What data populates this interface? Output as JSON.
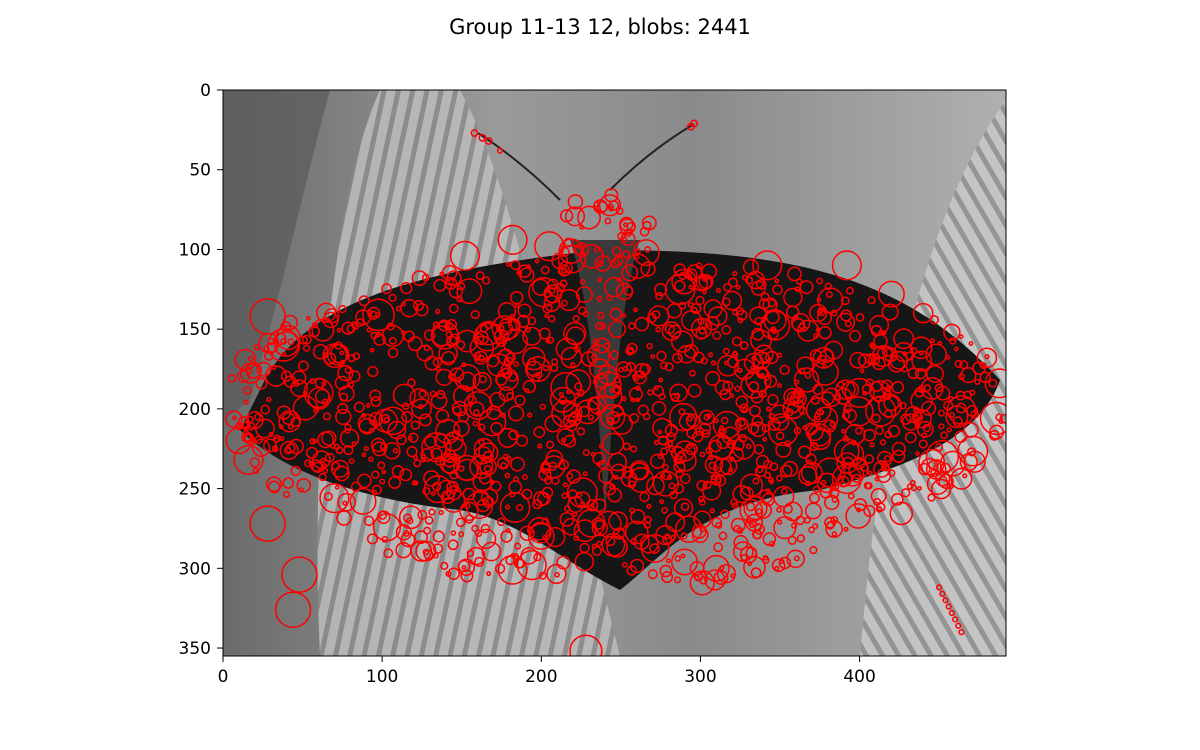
{
  "chart_data": {
    "type": "scatter",
    "title": "Group 11-13 12, blobs: 2441",
    "xlabel": "",
    "ylabel": "",
    "xlim": [
      0,
      492
    ],
    "ylim": [
      355,
      0
    ],
    "x_ticks": [
      0,
      100,
      200,
      300,
      400
    ],
    "y_ticks": [
      0,
      50,
      100,
      150,
      200,
      250,
      300,
      350
    ],
    "x_tick_labels": [
      "0",
      "100",
      "200",
      "300",
      "400"
    ],
    "y_tick_labels": [
      "0",
      "50",
      "100",
      "150",
      "200",
      "250",
      "300",
      "350"
    ],
    "grid": false,
    "background": "grayscale butterfly photograph",
    "blob_count": 2441,
    "colors": {
      "blob": "#ff0000",
      "axis": "#000000"
    },
    "series": [
      {
        "marker": "open-circle",
        "points": [
          {
            "x": 28,
            "y": 142,
            "r": 11
          },
          {
            "x": 38,
            "y": 160,
            "r": 10
          },
          {
            "x": 28,
            "y": 272,
            "r": 11
          },
          {
            "x": 48,
            "y": 304,
            "r": 11
          },
          {
            "x": 44,
            "y": 326,
            "r": 11
          },
          {
            "x": 228,
            "y": 352,
            "r": 10
          },
          {
            "x": 158,
            "y": 27,
            "r": 2
          },
          {
            "x": 163,
            "y": 30,
            "r": 2
          },
          {
            "x": 167,
            "y": 32,
            "r": 2
          },
          {
            "x": 174,
            "y": 38,
            "r": 1.5
          },
          {
            "x": 294,
            "y": 23,
            "r": 2
          },
          {
            "x": 296,
            "y": 21,
            "r": 2
          },
          {
            "x": 152,
            "y": 104,
            "r": 9
          },
          {
            "x": 182,
            "y": 94,
            "r": 9
          },
          {
            "x": 205,
            "y": 98,
            "r": 9
          },
          {
            "x": 230,
            "y": 80,
            "r": 7
          },
          {
            "x": 244,
            "y": 66,
            "r": 4
          },
          {
            "x": 266,
            "y": 102,
            "r": 8
          },
          {
            "x": 342,
            "y": 110,
            "r": 9
          },
          {
            "x": 392,
            "y": 110,
            "r": 9
          },
          {
            "x": 420,
            "y": 128,
            "r": 8
          },
          {
            "x": 440,
            "y": 140,
            "r": 6
          },
          {
            "x": 458,
            "y": 152,
            "r": 5
          },
          {
            "x": 480,
            "y": 168,
            "r": 6
          },
          {
            "x": 488,
            "y": 184,
            "r": 9
          },
          {
            "x": 486,
            "y": 206,
            "r": 10
          },
          {
            "x": 452,
            "y": 230,
            "r": 10
          },
          {
            "x": 392,
            "y": 244,
            "r": 9
          },
          {
            "x": 10,
            "y": 220,
            "r": 8
          },
          {
            "x": 16,
            "y": 232,
            "r": 9
          },
          {
            "x": 70,
            "y": 256,
            "r": 9
          },
          {
            "x": 88,
            "y": 258,
            "r": 8
          },
          {
            "x": 194,
            "y": 298,
            "r": 9
          },
          {
            "x": 310,
            "y": 300,
            "r": 8
          },
          {
            "x": 290,
            "y": 296,
            "r": 8
          },
          {
            "x": 200,
            "y": 280,
            "r": 8
          },
          {
            "x": 352,
            "y": 214,
            "r": 9
          },
          {
            "x": 332,
            "y": 264,
            "r": 7
          },
          {
            "x": 118,
            "y": 268,
            "r": 7
          },
          {
            "x": 134,
            "y": 224,
            "r": 9
          },
          {
            "x": 60,
            "y": 190,
            "r": 9
          },
          {
            "x": 400,
            "y": 190,
            "r": 9
          },
          {
            "x": 450,
            "y": 312,
            "r": 1.5
          },
          {
            "x": 452,
            "y": 316,
            "r": 1.5
          },
          {
            "x": 454,
            "y": 320,
            "r": 1.5
          },
          {
            "x": 456,
            "y": 324,
            "r": 1.5
          },
          {
            "x": 458,
            "y": 328,
            "r": 1.5
          },
          {
            "x": 460,
            "y": 332,
            "r": 1.5
          },
          {
            "x": 462,
            "y": 336,
            "r": 1.5
          },
          {
            "x": 464,
            "y": 340,
            "r": 1.5
          }
        ]
      }
    ]
  }
}
